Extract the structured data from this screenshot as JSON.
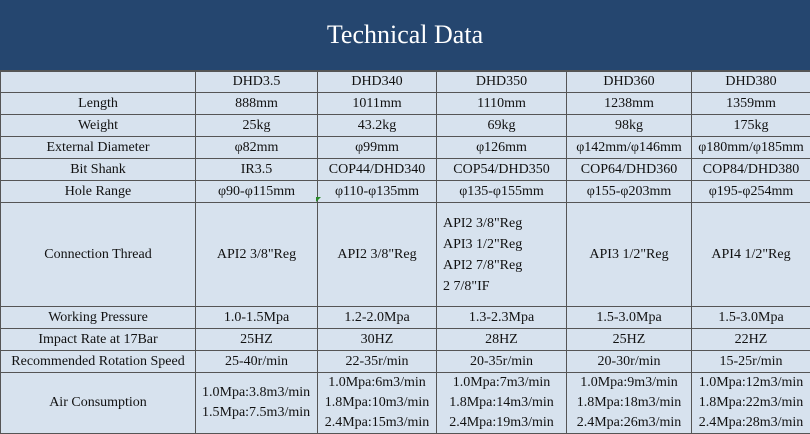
{
  "title": "Technical Data",
  "columns": [
    "",
    "DHD3.5",
    "DHD340",
    "DHD350",
    "DHD360",
    "DHD380"
  ],
  "rows": [
    {
      "label": "Length",
      "values": [
        [
          "888mm"
        ],
        [
          "1011mm"
        ],
        [
          "1110mm"
        ],
        [
          "1238mm"
        ],
        [
          "1359mm"
        ]
      ]
    },
    {
      "label": "Weight",
      "values": [
        [
          "25kg"
        ],
        [
          "43.2kg"
        ],
        [
          "69kg"
        ],
        [
          "98kg"
        ],
        [
          "175kg"
        ]
      ]
    },
    {
      "label": "External Diameter",
      "values": [
        [
          "φ82mm"
        ],
        [
          "φ99mm"
        ],
        [
          "φ126mm"
        ],
        [
          "φ142mm/φ146mm"
        ],
        [
          "φ180mm/φ185mm"
        ]
      ]
    },
    {
      "label": "Bit Shank",
      "values": [
        [
          "IR3.5"
        ],
        [
          "COP44/DHD340"
        ],
        [
          "COP54/DHD350"
        ],
        [
          "COP64/DHD360"
        ],
        [
          "COP84/DHD380"
        ]
      ]
    },
    {
      "label": "Hole Range",
      "values": [
        [
          "φ90-φ115mm"
        ],
        [
          "φ110-φ135mm"
        ],
        [
          "φ135-φ155mm"
        ],
        [
          "φ155-φ203mm"
        ],
        [
          "φ195-φ254mm"
        ]
      ]
    },
    {
      "label": "Connection Thread",
      "values": [
        [
          "API2 3/8\"Reg"
        ],
        [
          "API2 3/8\"Reg"
        ],
        [
          "API2 3/8\"Reg",
          "API3 1/2\"Reg",
          "API2 7/8\"Reg",
          "2 7/8\"IF"
        ],
        [
          "API3 1/2\"Reg"
        ],
        [
          "API4 1/2\"Reg"
        ]
      ]
    },
    {
      "label": "Working Pressure",
      "values": [
        [
          "1.0-1.5Mpa"
        ],
        [
          "1.2-2.0Mpa"
        ],
        [
          "1.3-2.3Mpa"
        ],
        [
          "1.5-3.0Mpa"
        ],
        [
          "1.5-3.0Mpa"
        ]
      ]
    },
    {
      "label": "Impact Rate at 17Bar",
      "values": [
        [
          "25HZ"
        ],
        [
          "30HZ"
        ],
        [
          "28HZ"
        ],
        [
          "25HZ"
        ],
        [
          "22HZ"
        ]
      ]
    },
    {
      "label": "Recommended Rotation Speed",
      "values": [
        [
          "25-40r/min"
        ],
        [
          "22-35r/min"
        ],
        [
          "20-35r/min"
        ],
        [
          "20-30r/min"
        ],
        [
          "15-25r/min"
        ]
      ]
    },
    {
      "label": "Air Consumption",
      "values": [
        [
          "1.0Mpa:3.8m3/min",
          "1.5Mpa:7.5m3/min"
        ],
        [
          "1.0Mpa:6m3/min",
          "1.8Mpa:10m3/min",
          "2.4Mpa:15m3/min"
        ],
        [
          "1.0Mpa:7m3/min",
          "1.8Mpa:14m3/min",
          "2.4Mpa:19m3/min"
        ],
        [
          "1.0Mpa:9m3/min",
          "1.8Mpa:18m3/min",
          "2.4Mpa:26m3/min"
        ],
        [
          "1.0Mpa:12m3/min",
          "1.8Mpa:22m3/min",
          "2.4Mpa:28m3/min"
        ]
      ]
    }
  ],
  "colors": {
    "title_background": "#25466f",
    "title_text": "#ffffff",
    "cell_background": "#d7e2ee",
    "grid": "#555555"
  }
}
